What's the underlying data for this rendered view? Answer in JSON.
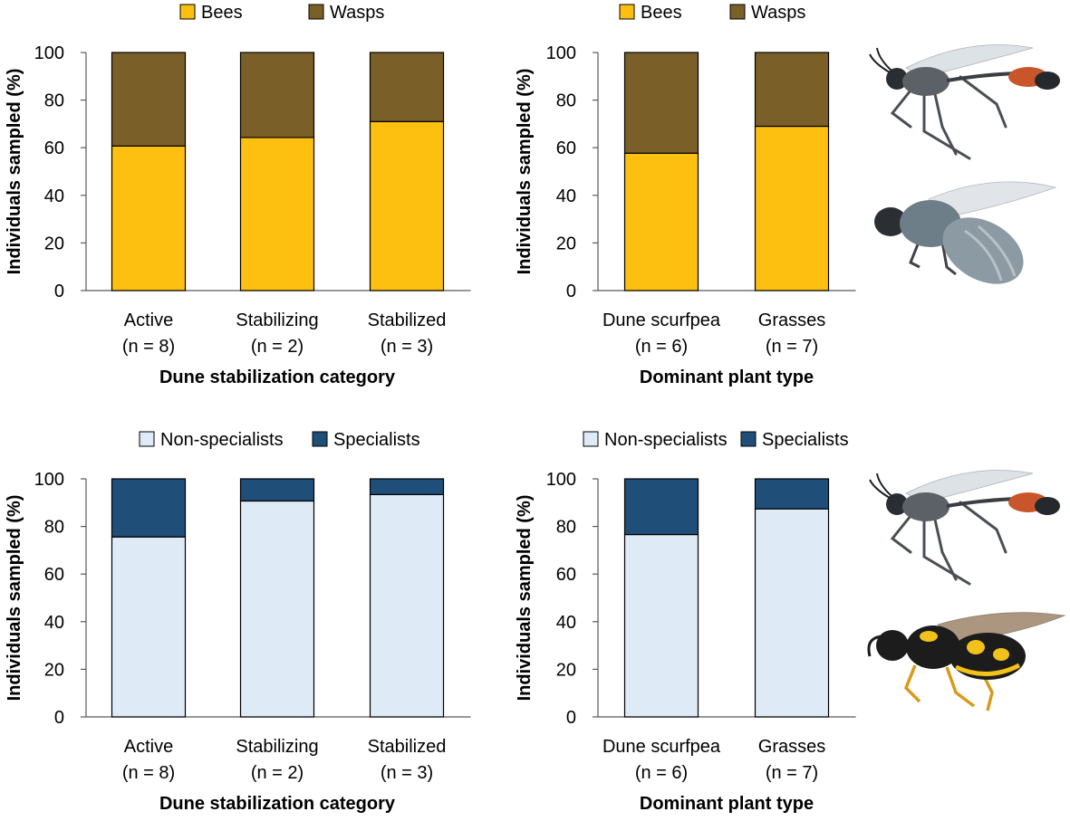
{
  "colors": {
    "bees": "#FDC010",
    "wasps": "#7B5F28",
    "non_specialists": "#DEEAF6",
    "specialists": "#1F4E79",
    "axis": "#595959",
    "bar_stroke": "#000000"
  },
  "insects": [
    {
      "name": "Red-and-black thread-waisted wasp",
      "icon": "wasp-icon"
    },
    {
      "name": "Gray-blue fuzzy bee",
      "icon": "bee-icon"
    },
    {
      "name": "Red-and-black thread-waisted wasp",
      "icon": "wasp-icon"
    },
    {
      "name": "Black-and-yellow wasp",
      "icon": "wasp-icon"
    }
  ],
  "chart_data": [
    {
      "type": "bar",
      "stacked": true,
      "panel": "top-left",
      "categories": [
        "Active",
        "Stabilizing",
        "Stabilized"
      ],
      "category_counts": [
        "(n = 8)",
        "(n = 2)",
        "(n = 3)"
      ],
      "series": [
        {
          "name": "Bees",
          "color_key": "bees",
          "values": [
            60.7,
            64.3,
            71.0
          ]
        },
        {
          "name": "Wasps",
          "color_key": "wasps",
          "values": [
            39.3,
            35.7,
            29.0
          ]
        }
      ],
      "xlabel": "Dune stabilization category",
      "ylabel": "Individuals sampled (%)",
      "ylim": [
        0,
        100
      ],
      "yticks": [
        "0",
        "20",
        "40",
        "60",
        "80",
        "100"
      ],
      "legend": "top"
    },
    {
      "type": "bar",
      "stacked": true,
      "panel": "top-right",
      "categories": [
        "Dune scurfpea",
        "Grasses"
      ],
      "category_counts": [
        "(n = 6)",
        "(n = 7)"
      ],
      "series": [
        {
          "name": "Bees",
          "color_key": "bees",
          "values": [
            57.7,
            69.0
          ]
        },
        {
          "name": "Wasps",
          "color_key": "wasps",
          "values": [
            42.3,
            31.0
          ]
        }
      ],
      "xlabel": "Dominant plant type",
      "ylabel": "Individuals sampled (%)",
      "ylim": [
        0,
        100
      ],
      "yticks": [
        "0",
        "20",
        "40",
        "60",
        "80",
        "100"
      ],
      "legend": "top"
    },
    {
      "type": "bar",
      "stacked": true,
      "panel": "bottom-left",
      "categories": [
        "Active",
        "Stabilizing",
        "Stabilized"
      ],
      "category_counts": [
        "(n = 8)",
        "(n = 2)",
        "(n = 3)"
      ],
      "series": [
        {
          "name": "Non-specialists",
          "color_key": "non_specialists",
          "values": [
            75.6,
            90.7,
            93.4
          ]
        },
        {
          "name": "Specialists",
          "color_key": "specialists",
          "values": [
            24.4,
            9.3,
            6.6
          ]
        }
      ],
      "xlabel": "Dune stabilization category",
      "ylabel": "Individuals sampled (%)",
      "ylim": [
        0,
        100
      ],
      "yticks": [
        "0",
        "20",
        "40",
        "60",
        "80",
        "100"
      ],
      "legend": "top"
    },
    {
      "type": "bar",
      "stacked": true,
      "panel": "bottom-right",
      "categories": [
        "Dune scurfpea",
        "Grasses"
      ],
      "category_counts": [
        "(n = 6)",
        "(n = 7)"
      ],
      "series": [
        {
          "name": "Non-specialists",
          "color_key": "non_specialists",
          "values": [
            76.6,
            87.4
          ]
        },
        {
          "name": "Specialists",
          "color_key": "specialists",
          "values": [
            23.4,
            12.6
          ]
        }
      ],
      "xlabel": "Dominant plant type",
      "ylabel": "Individuals sampled (%)",
      "ylim": [
        0,
        100
      ],
      "yticks": [
        "0",
        "20",
        "40",
        "60",
        "80",
        "100"
      ],
      "legend": "top"
    }
  ]
}
